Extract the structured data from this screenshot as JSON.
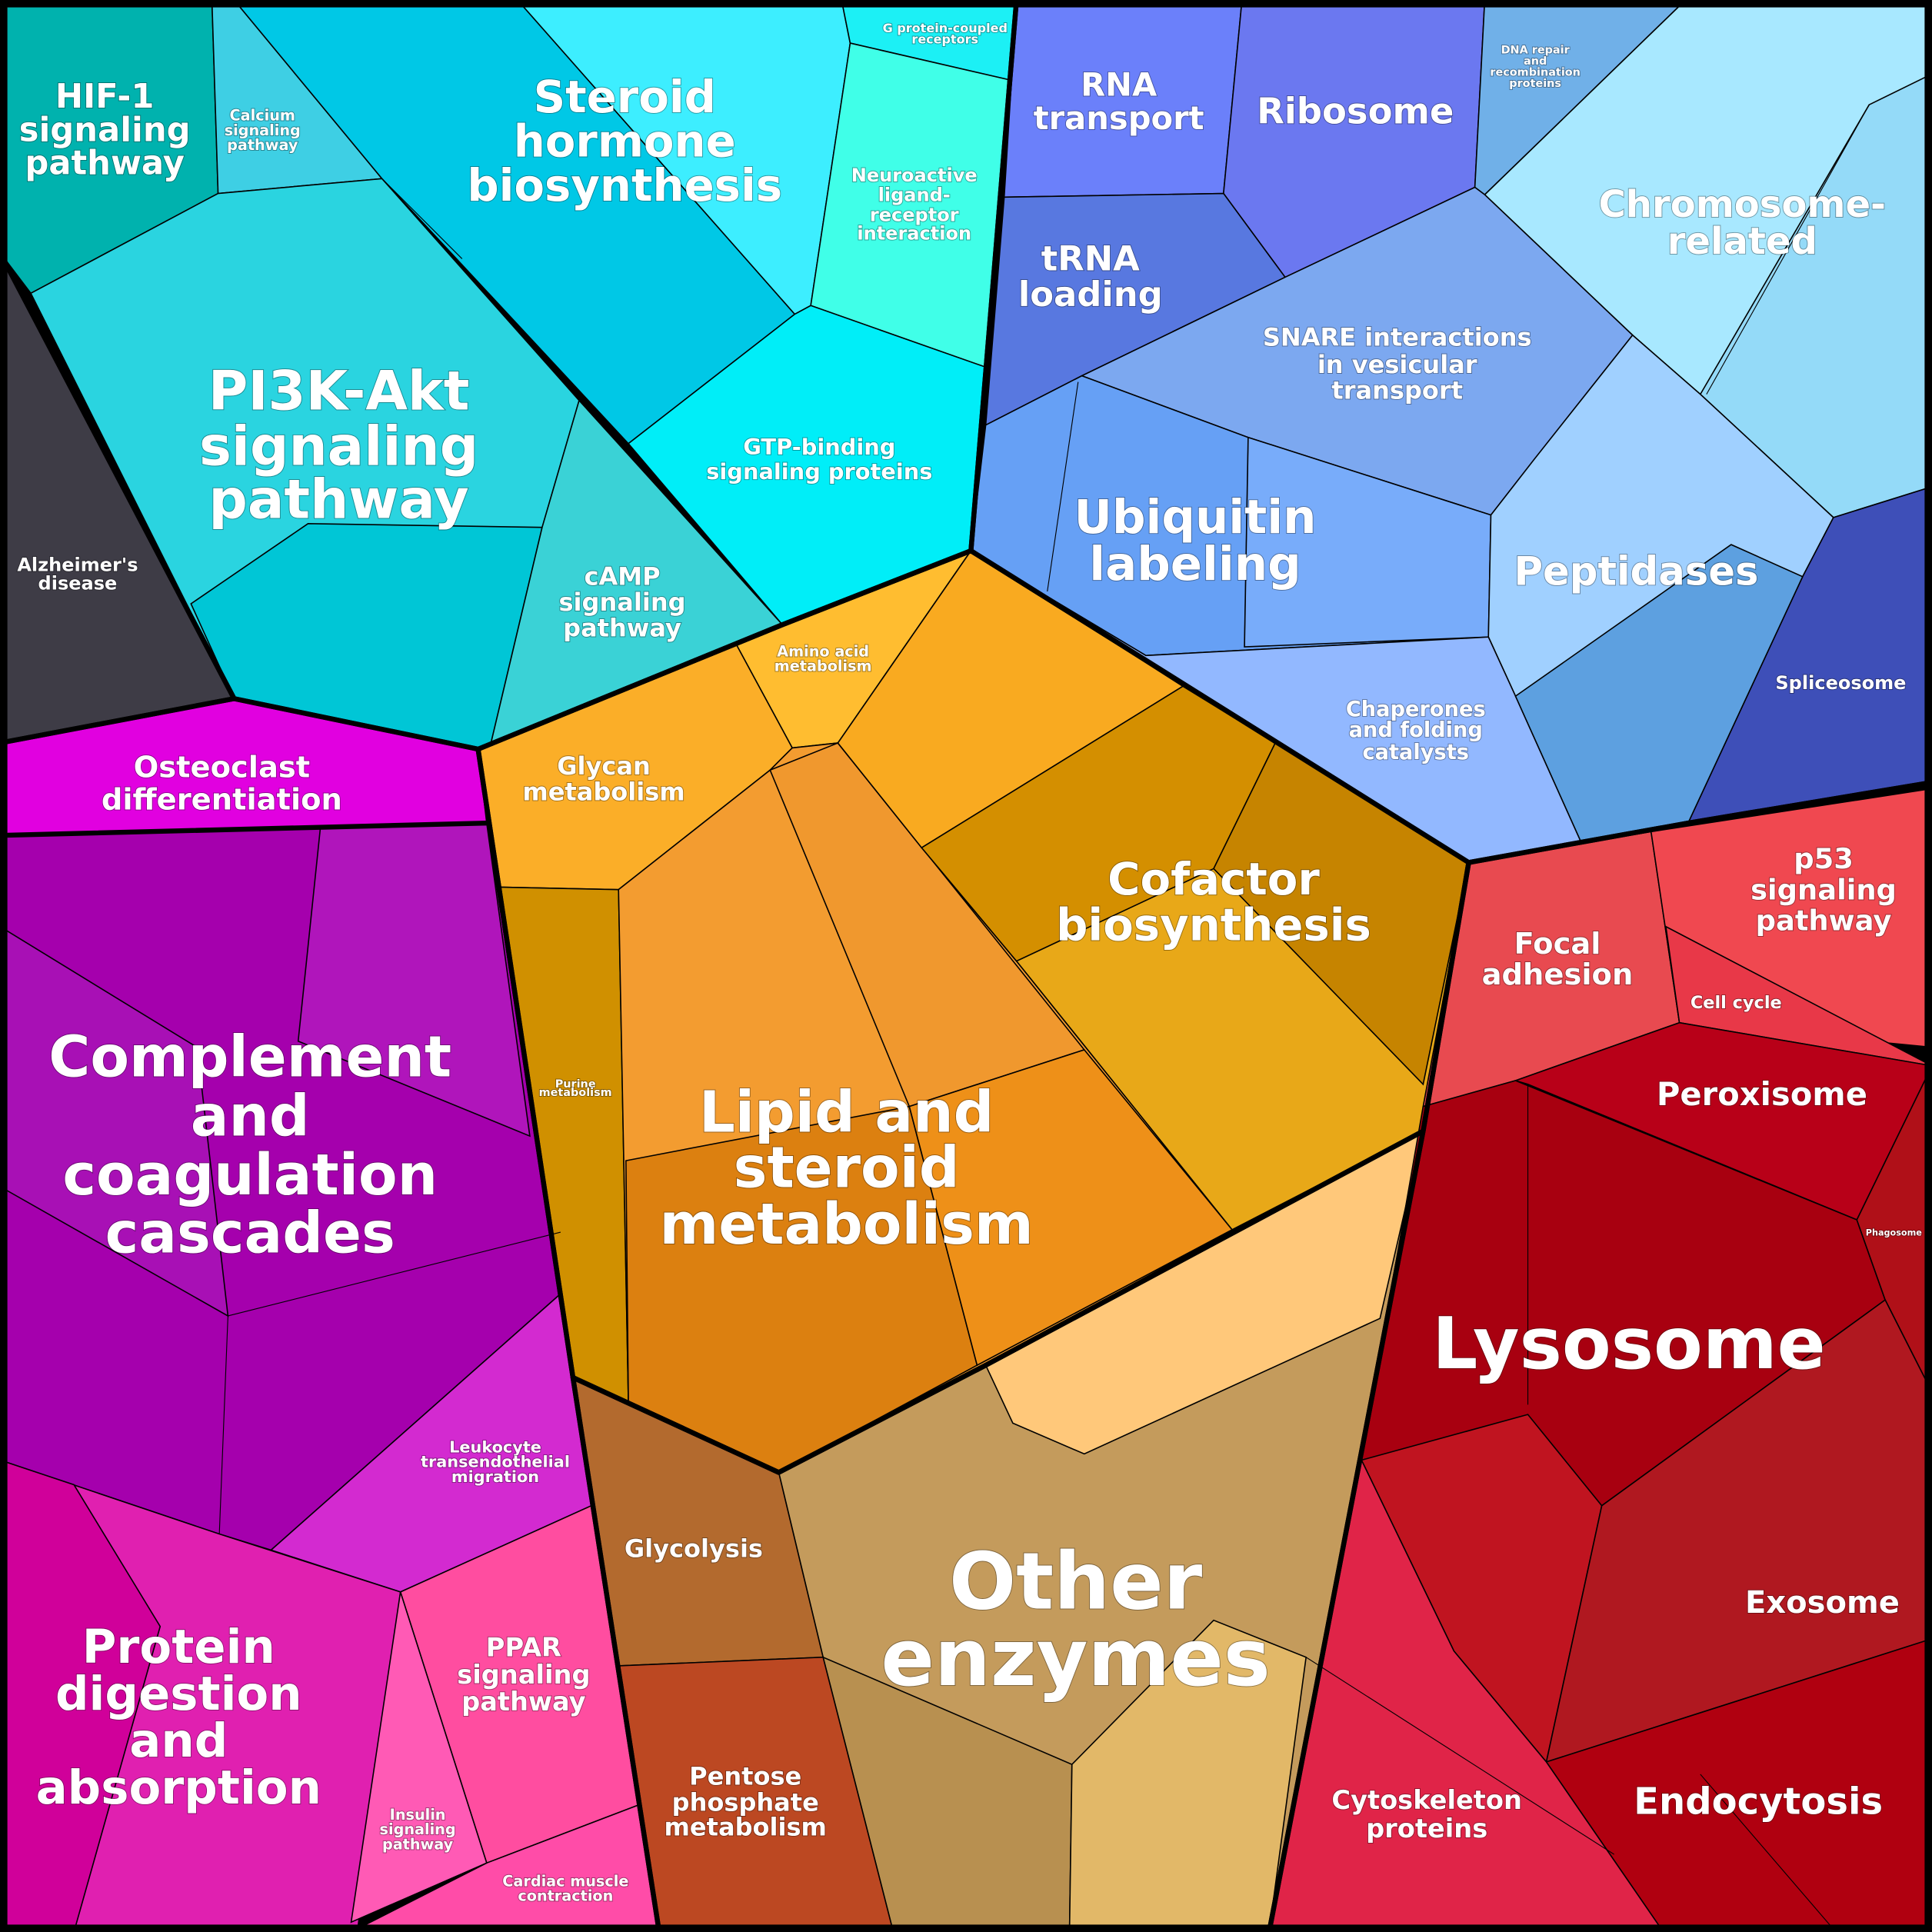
{
  "regions": [
    {
      "lines": [
        "HIF-1",
        "signaling",
        "pathway"
      ]
    },
    {
      "lines": [
        "Calcium",
        "signaling",
        "pathway"
      ]
    },
    {
      "lines": [
        "Steroid",
        "hormone",
        "biosynthesis"
      ]
    },
    {
      "lines": [
        "G protein-coupled",
        "receptors"
      ]
    },
    {
      "lines": [
        "Neuroactive",
        "ligand-",
        "receptor",
        "interaction"
      ]
    },
    {
      "lines": [
        "PI3K-Akt",
        "signaling",
        "pathway"
      ]
    },
    {
      "lines": [
        "cAMP",
        "signaling",
        "pathway"
      ]
    },
    {
      "lines": [
        "GTP-binding",
        "signaling proteins"
      ]
    },
    {
      "lines": [
        "Alzheimer's",
        "disease"
      ]
    },
    {
      "lines": [
        "Osteoclast",
        "differentiation"
      ]
    },
    {
      "lines": [
        "Complement",
        "and",
        "coagulation",
        "cascades"
      ]
    },
    {
      "lines": [
        "Leukocyte",
        "transendothelial",
        "migration"
      ]
    },
    {
      "lines": [
        "Protein",
        "digestion",
        "and",
        "absorption"
      ]
    },
    {
      "lines": [
        "PPAR",
        "signaling",
        "pathway"
      ]
    },
    {
      "lines": [
        "Insulin",
        "signaling",
        "pathway"
      ]
    },
    {
      "lines": [
        "Cardiac muscle",
        "contraction"
      ]
    },
    {
      "lines": [
        "Amino acid",
        "metabolism"
      ]
    },
    {
      "lines": [
        "Glycan",
        "metabolism"
      ]
    },
    {
      "lines": [
        "Purine",
        "metabolism"
      ]
    },
    {
      "lines": [
        "Lipid and",
        "steroid",
        "metabolism"
      ]
    },
    {
      "lines": [
        "Cofactor",
        "biosynthesis"
      ]
    },
    {
      "lines": [
        "Glycolysis"
      ]
    },
    {
      "lines": [
        "Pentose",
        "phosphate",
        "metabolism"
      ]
    },
    {
      "lines": [
        "Other",
        "enzymes"
      ]
    },
    {
      "lines": [
        "RNA",
        "transport"
      ]
    },
    {
      "lines": [
        "Ribosome"
      ]
    },
    {
      "lines": [
        "tRNA",
        "loading"
      ]
    },
    {
      "lines": [
        "DNA repair",
        "and",
        "recombination",
        "proteins"
      ]
    },
    {
      "lines": [
        "Chromosome-",
        "related"
      ]
    },
    {
      "lines": [
        "SNARE interactions",
        "in vesicular",
        "transport"
      ]
    },
    {
      "lines": [
        "Ubiquitin",
        "labeling"
      ]
    },
    {
      "lines": [
        "Peptidases"
      ]
    },
    {
      "lines": [
        "Chaperones",
        "and folding",
        "catalysts"
      ]
    },
    {
      "lines": [
        "Spliceosome"
      ]
    },
    {
      "lines": [
        "p53",
        "signaling",
        "pathway"
      ]
    },
    {
      "lines": [
        "Focal",
        "adhesion"
      ]
    },
    {
      "lines": [
        "Cell cycle"
      ]
    },
    {
      "lines": [
        "Peroxisome"
      ]
    },
    {
      "lines": [
        "Phagosome"
      ]
    },
    {
      "lines": [
        "Lysosome"
      ]
    },
    {
      "lines": [
        "Exosome"
      ]
    },
    {
      "lines": [
        "Endocytosis"
      ]
    },
    {
      "lines": [
        "Cytoskeleton",
        "proteins"
      ]
    }
  ]
}
